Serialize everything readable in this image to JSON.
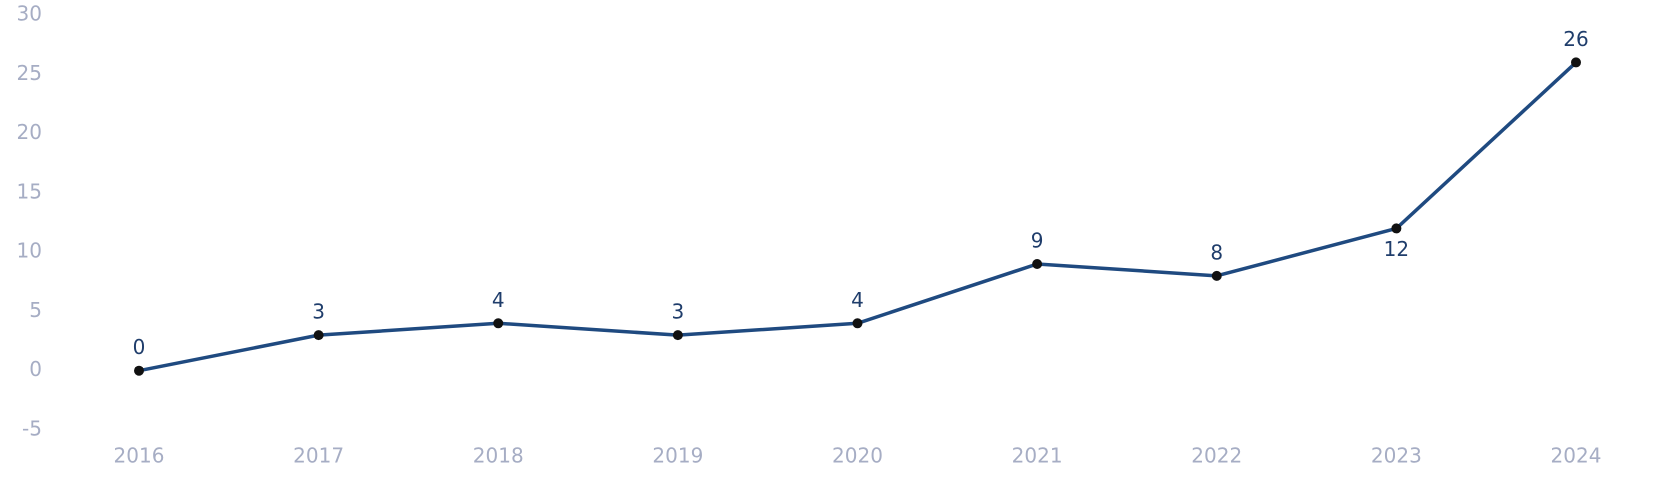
{
  "chart_data": {
    "type": "line",
    "categories": [
      "2016",
      "2017",
      "2018",
      "2019",
      "2020",
      "2021",
      "2022",
      "2023",
      "2024"
    ],
    "values": [
      0,
      3,
      4,
      3,
      4,
      9,
      8,
      12,
      26
    ],
    "color": "#1f4a80",
    "marker_color": "#111111",
    "ylim": [
      -5,
      30
    ],
    "yticks": [
      -5,
      0,
      5,
      10,
      15,
      20,
      25,
      30
    ],
    "grid": false
  }
}
